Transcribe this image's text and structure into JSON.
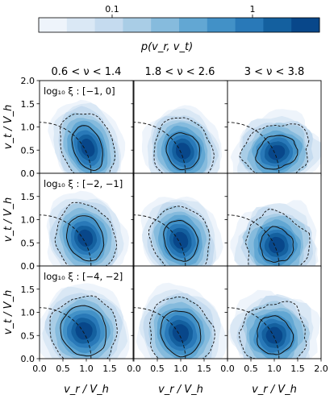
{
  "chart_data": {
    "type": "heatmap",
    "colorbar": {
      "label": "p(v_r, v_t)",
      "scale": "log",
      "range": [
        0.03,
        3
      ],
      "ticks": [
        {
          "value": 0.1,
          "label": "0.1"
        },
        {
          "value": 1,
          "label": "1"
        }
      ],
      "levels": [
        "#eef4fb",
        "#dae8f5",
        "#c5dbef",
        "#a9cde6",
        "#86bbdd",
        "#62a7d3",
        "#4291c7",
        "#2979b8",
        "#14609f",
        "#08478a"
      ]
    },
    "column_titles": [
      "0.6 < ν < 1.4",
      "1.8 < ν < 2.6",
      "3 < ν < 3.8"
    ],
    "row_labels": [
      "log₁₀ ξ : [−1, 0]",
      "log₁₀ ξ : [−2, −1]",
      "log₁₀ ξ : [−4, −2]"
    ],
    "xlabel": "v_r / V_h",
    "ylabel": "v_t / V_h",
    "xlim": [
      0.0,
      2.0
    ],
    "ylim": [
      0.0,
      2.0
    ],
    "xticks": [
      "0.0",
      "0.5",
      "1.0",
      "1.5",
      "2.0"
    ],
    "yticks": [
      "0.0",
      "0.5",
      "1.0",
      "1.5",
      "2.0"
    ],
    "grid": false,
    "panels": [
      {
        "row": 0,
        "col": 0,
        "peak": [
          1.03,
          0.55
        ],
        "solid_contour": {
          "rx": 0.3,
          "ry": 0.5
        },
        "dashed_contour": {
          "rx": 0.55,
          "ry": 0.8
        }
      },
      {
        "row": 0,
        "col": 1,
        "peak": [
          1.05,
          0.48
        ],
        "solid_contour": {
          "rx": 0.35,
          "ry": 0.4
        },
        "dashed_contour": {
          "rx": 0.62,
          "ry": 0.72
        }
      },
      {
        "row": 0,
        "col": 2,
        "peak": [
          1.05,
          0.45
        ],
        "solid_contour": {
          "rx": 0.45,
          "ry": 0.35
        },
        "dashed_contour": {
          "rx": 0.72,
          "ry": 0.62
        }
      },
      {
        "row": 1,
        "col": 0,
        "peak": [
          0.98,
          0.6
        ],
        "solid_contour": {
          "rx": 0.38,
          "ry": 0.5
        },
        "dashed_contour": {
          "rx": 0.63,
          "ry": 0.75
        }
      },
      {
        "row": 1,
        "col": 1,
        "peak": [
          1.0,
          0.55
        ],
        "solid_contour": {
          "rx": 0.35,
          "ry": 0.45
        },
        "dashed_contour": {
          "rx": 0.62,
          "ry": 0.75
        }
      },
      {
        "row": 1,
        "col": 2,
        "peak": [
          1.05,
          0.45
        ],
        "solid_contour": {
          "rx": 0.35,
          "ry": 0.38
        },
        "dashed_contour": {
          "rx": 0.68,
          "ry": 0.7
        }
      },
      {
        "row": 2,
        "col": 0,
        "peak": [
          0.95,
          0.6
        ],
        "solid_contour": {
          "rx": 0.48,
          "ry": 0.55
        },
        "dashed_contour": {
          "rx": 0.72,
          "ry": 0.75
        }
      },
      {
        "row": 2,
        "col": 1,
        "peak": [
          1.0,
          0.55
        ],
        "solid_contour": {
          "rx": 0.42,
          "ry": 0.5
        },
        "dashed_contour": {
          "rx": 0.68,
          "ry": 0.78
        }
      },
      {
        "row": 2,
        "col": 2,
        "peak": [
          1.0,
          0.5
        ],
        "solid_contour": {
          "rx": 0.38,
          "ry": 0.42
        },
        "dashed_contour": {
          "rx": 0.7,
          "ry": 0.72
        }
      }
    ],
    "reference_curve": {
      "type": "quarter-circle",
      "radius": 1.1,
      "style": "dashed"
    }
  }
}
